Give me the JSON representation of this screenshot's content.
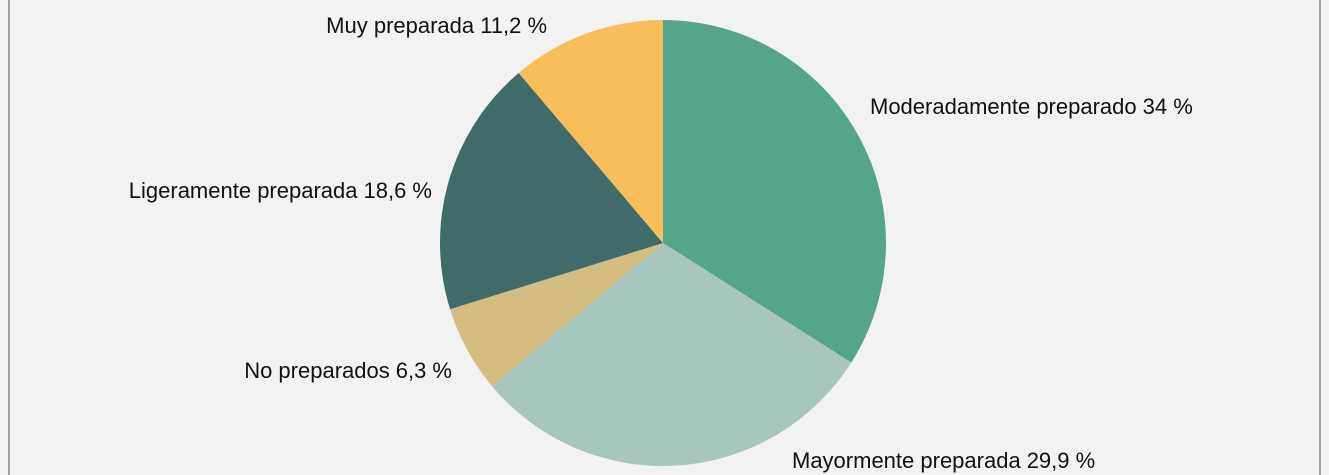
{
  "chart_data": {
    "type": "pie",
    "categories": [
      "Moderadamente preparado",
      "Mayormente preparada",
      "No preparados",
      "Ligeramente preparada",
      "Muy preparada"
    ],
    "values": [
      34,
      29.9,
      6.3,
      18.6,
      11.2
    ],
    "value_labels": [
      "34 %",
      "29,9 %",
      "6,3 %",
      "18,6 %",
      "11,2 %"
    ],
    "colors": [
      "#55a58a",
      "#a8c6bd",
      "#d4bd80",
      "#3f6b6a",
      "#f8be5a"
    ]
  }
}
